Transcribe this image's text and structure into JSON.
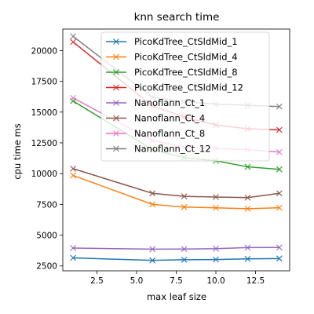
{
  "chart_data": {
    "type": "line",
    "title": "knn search time",
    "xlabel": "max leaf size",
    "ylabel": "cpu time ms",
    "xlim": [
      0.35,
      14.65
    ],
    "ylim": [
      2100,
      21750
    ],
    "x": [
      1,
      6,
      8,
      10,
      12,
      14
    ],
    "xticks": [
      2.5,
      5.0,
      7.5,
      10.0,
      12.5
    ],
    "xtick_labels": [
      "2.5",
      "5.0",
      "7.5",
      "10.0",
      "12.5"
    ],
    "yticks": [
      2500,
      5000,
      7500,
      10000,
      12500,
      15000,
      17500,
      20000
    ],
    "ytick_labels": [
      "2500",
      "5000",
      "7500",
      "10000",
      "12500",
      "15000",
      "17500",
      "20000"
    ],
    "grid": false,
    "legend_position": "upper-center",
    "marker": "x",
    "series": [
      {
        "name": "PicoKdTree_CtSldMid_1",
        "color": "#1f77b4",
        "values": [
          3150,
          2950,
          3000,
          3020,
          3070,
          3100
        ]
      },
      {
        "name": "PicoKdTree_CtSldMid_4",
        "color": "#ff7f0e",
        "values": [
          9850,
          7500,
          7280,
          7220,
          7150,
          7230
        ]
      },
      {
        "name": "PicoKdTree_CtSldMid_8",
        "color": "#2ca02c",
        "values": [
          15900,
          11950,
          11300,
          11050,
          10550,
          10350
        ]
      },
      {
        "name": "PicoKdTree_CtSldMid_12",
        "color": "#d62728",
        "values": [
          20700,
          15500,
          14600,
          13950,
          13650,
          13550
        ]
      },
      {
        "name": "Nanoflann_Ct_1",
        "color": "#9467bd",
        "values": [
          3950,
          3860,
          3870,
          3900,
          3990,
          4000
        ]
      },
      {
        "name": "Nanoflann_Ct_4",
        "color": "#8c564b",
        "values": [
          10400,
          8400,
          8150,
          8100,
          8050,
          8400
        ]
      },
      {
        "name": "Nanoflann_Ct_8",
        "color": "#e377c2",
        "values": [
          16150,
          12700,
          12150,
          12050,
          11950,
          11750
        ]
      },
      {
        "name": "Nanoflann_Ct_12",
        "color": "#7f7f7f",
        "values": [
          21150,
          16200,
          15850,
          15650,
          15550,
          15450
        ]
      }
    ]
  }
}
